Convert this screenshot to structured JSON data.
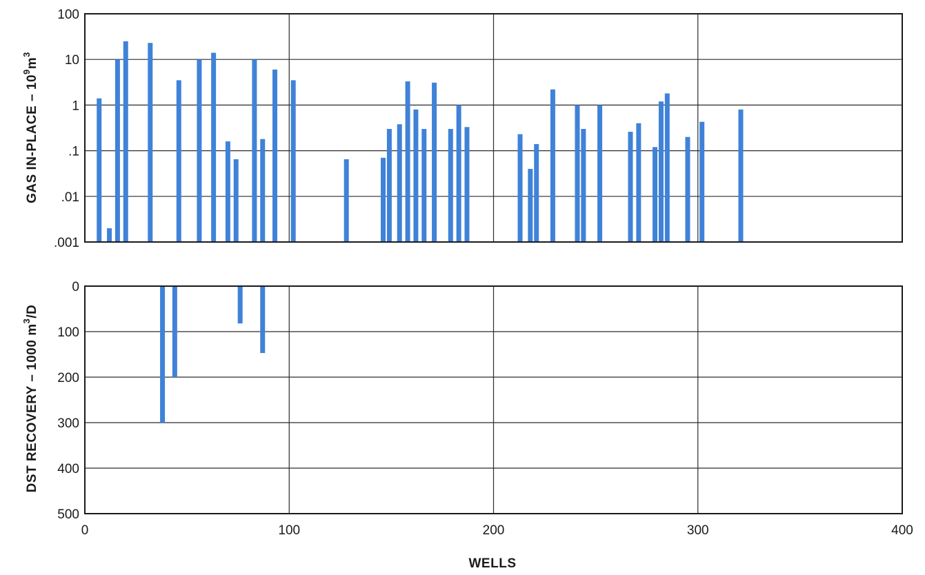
{
  "chart_data": [
    {
      "type": "bar",
      "ylabel_main": "GAS IN-PLACE – 10",
      "ylabel_sup": "9",
      "ylabel_tail": "m",
      "ylabel_sup2": "3",
      "y_scale": "log",
      "ylim": [
        0.001,
        100
      ],
      "y_tick_values": [
        100,
        10,
        1,
        0.1,
        0.01,
        0.001
      ],
      "y_tick_labels": [
        "100",
        "10",
        "1",
        ".1",
        ".01",
        ".001"
      ],
      "xlim": [
        0,
        400
      ],
      "x_tick_values": [
        0,
        100,
        200,
        300,
        400
      ],
      "grid": true,
      "color": "#3f82d8",
      "x": [
        7,
        12,
        16,
        20,
        32,
        46,
        56,
        63,
        70,
        74,
        83,
        87,
        93,
        102,
        128,
        146,
        149,
        154,
        158,
        162,
        166,
        171,
        179,
        183,
        187,
        213,
        218,
        221,
        229,
        241,
        244,
        252,
        267,
        271,
        279,
        282,
        285,
        295,
        302,
        321
      ],
      "values": [
        1.4,
        0.002,
        10,
        25,
        23,
        3.5,
        10,
        14,
        0.16,
        0.065,
        10,
        0.18,
        6,
        3.5,
        0.065,
        0.07,
        0.3,
        0.38,
        3.3,
        0.8,
        0.3,
        3.1,
        0.3,
        1.0,
        0.33,
        0.23,
        0.04,
        0.14,
        2.2,
        1.0,
        0.3,
        1.0,
        0.26,
        0.4,
        0.12,
        1.2,
        1.8,
        0.2,
        0.43,
        0.8
      ]
    },
    {
      "type": "bar",
      "ylabel_main": "DST RECOVERY – 1000 m",
      "ylabel_sup": "3",
      "ylabel_tail": "/D",
      "y_scale": "linear",
      "y_inverted": true,
      "ylim": [
        0,
        500
      ],
      "y_tick_values": [
        0,
        100,
        200,
        300,
        400,
        500
      ],
      "y_tick_labels": [
        "0",
        "100",
        "200",
        "300",
        "400",
        "500"
      ],
      "xlabel": "WELLS",
      "xlim": [
        0,
        400
      ],
      "x_tick_values": [
        0,
        100,
        200,
        300,
        400
      ],
      "x_tick_labels": [
        "0",
        "100",
        "200",
        "300",
        "400"
      ],
      "grid": true,
      "color": "#3f82d8",
      "x": [
        38,
        44,
        76,
        87
      ],
      "values": [
        300,
        200,
        82,
        147
      ]
    }
  ]
}
